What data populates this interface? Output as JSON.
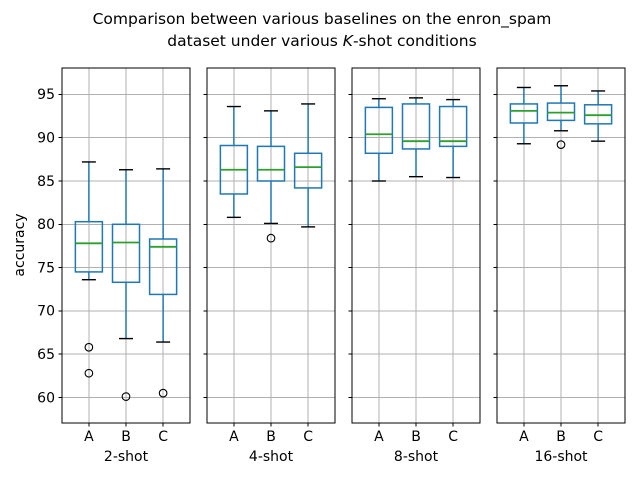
{
  "chart_data": {
    "type": "boxplot",
    "title_line1": "Comparison between various baselines on the enron_spam",
    "title_line2_pre": "dataset under various ",
    "title_line2_italic": "K",
    "title_line2_post": "-shot conditions",
    "ylabel": "accuracy",
    "ylim": [
      57.05,
      98.05
    ],
    "yticks": [
      60,
      65,
      70,
      75,
      80,
      85,
      90,
      95
    ],
    "grid": true,
    "legend": "none",
    "categories": [
      "A",
      "B",
      "C"
    ],
    "panels": [
      {
        "xlabel": "2-shot",
        "boxes": [
          {
            "label": "A",
            "whislo": 73.6,
            "q1": 74.5,
            "med": 77.8,
            "q3": 80.3,
            "whishi": 87.2,
            "fliers": [
              65.8,
              62.8
            ]
          },
          {
            "label": "B",
            "whislo": 66.8,
            "q1": 73.3,
            "med": 77.9,
            "q3": 80.0,
            "whishi": 86.3,
            "fliers": [
              60.1
            ]
          },
          {
            "label": "C",
            "whislo": 66.4,
            "q1": 71.9,
            "med": 77.4,
            "q3": 78.3,
            "whishi": 86.4,
            "fliers": [
              60.5
            ]
          }
        ]
      },
      {
        "xlabel": "4-shot",
        "boxes": [
          {
            "label": "A",
            "whislo": 80.8,
            "q1": 83.5,
            "med": 86.3,
            "q3": 89.1,
            "whishi": 93.6,
            "fliers": []
          },
          {
            "label": "B",
            "whislo": 80.1,
            "q1": 85.0,
            "med": 86.3,
            "q3": 89.0,
            "whishi": 93.1,
            "fliers": [
              78.4
            ]
          },
          {
            "label": "C",
            "whislo": 79.7,
            "q1": 84.2,
            "med": 86.6,
            "q3": 88.2,
            "whishi": 93.9,
            "fliers": []
          }
        ]
      },
      {
        "xlabel": "8-shot",
        "boxes": [
          {
            "label": "A",
            "whislo": 85.0,
            "q1": 88.2,
            "med": 90.4,
            "q3": 93.5,
            "whishi": 94.5,
            "fliers": []
          },
          {
            "label": "B",
            "whislo": 85.5,
            "q1": 88.7,
            "med": 89.6,
            "q3": 93.9,
            "whishi": 94.6,
            "fliers": []
          },
          {
            "label": "C",
            "whislo": 85.4,
            "q1": 89.0,
            "med": 89.6,
            "q3": 93.6,
            "whishi": 94.4,
            "fliers": []
          }
        ]
      },
      {
        "xlabel": "16-shot",
        "boxes": [
          {
            "label": "A",
            "whislo": 89.3,
            "q1": 91.7,
            "med": 93.1,
            "q3": 93.9,
            "whishi": 95.8,
            "fliers": []
          },
          {
            "label": "B",
            "whislo": 90.8,
            "q1": 92.0,
            "med": 92.9,
            "q3": 94.0,
            "whishi": 96.0,
            "fliers": [
              89.2
            ]
          },
          {
            "label": "C",
            "whislo": 89.6,
            "q1": 91.6,
            "med": 92.6,
            "q3": 93.8,
            "whishi": 95.4,
            "fliers": []
          }
        ]
      }
    ],
    "colors": {
      "box": "#1f77b4",
      "whisker": "#1f77b4",
      "median": "#2ca02c",
      "cap": "#000000",
      "flier": "#000000",
      "grid": "#b0b0b0",
      "axis": "#000000",
      "text": "#000000",
      "background": "#ffffff"
    }
  }
}
